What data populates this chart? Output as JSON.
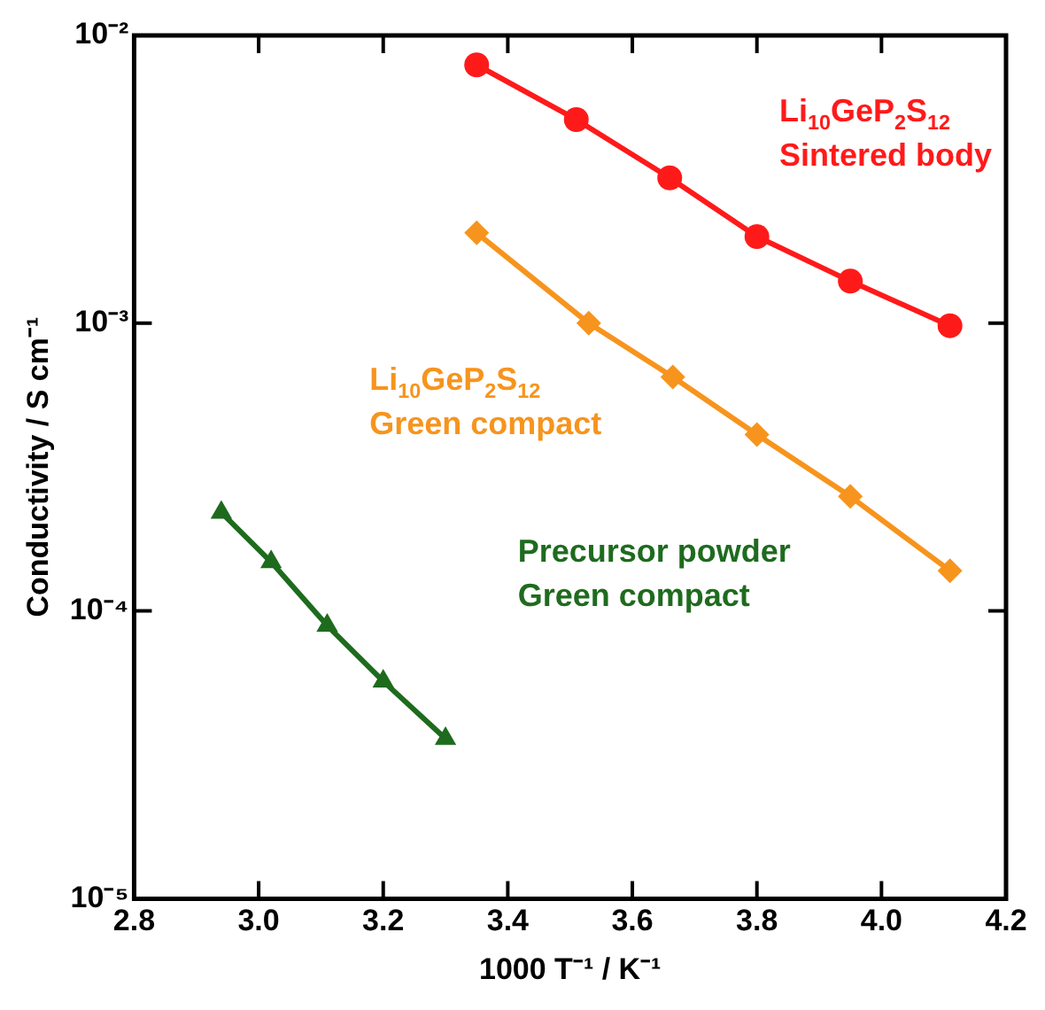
{
  "chart_data": {
    "type": "line",
    "xlabel": "1000 T⁻¹ / K⁻¹",
    "ylabel": "Conductivity / S cm⁻¹",
    "log": "y",
    "xlim": [
      2.8,
      4.2
    ],
    "xticks": [
      {
        "value": 2.8,
        "label": "2.8"
      },
      {
        "value": 3.0,
        "label": "3.0"
      },
      {
        "value": 3.2,
        "label": "3.2"
      },
      {
        "value": 3.4,
        "label": "3.4"
      },
      {
        "value": 3.6,
        "label": "3.6"
      },
      {
        "value": 3.8,
        "label": "3.8"
      },
      {
        "value": 4.0,
        "label": "4.0"
      },
      {
        "value": 4.2,
        "label": "4.2"
      }
    ],
    "ylim": [
      1e-05,
      0.01
    ],
    "yticks": [
      {
        "value": 1e-05,
        "label": "10⁻⁵"
      },
      {
        "value": 0.0001,
        "label": "10⁻⁴"
      },
      {
        "value": 0.001,
        "label": "10⁻³"
      },
      {
        "value": 0.01,
        "label": "10⁻²"
      }
    ],
    "grid": false,
    "legend": false,
    "line_style": "solid",
    "series": [
      {
        "name": "Li$_{10}$GeP$_{2}$S$_{12}$\nSintered body",
        "color": "#ff1a1a",
        "marker": "circle",
        "x": [
          3.35,
          3.51,
          3.66,
          3.8,
          3.95,
          4.11
        ],
        "values": [
          0.0079,
          0.0051,
          0.0032,
          0.002,
          0.0014,
          0.00098
        ]
      },
      {
        "name": "Li$_{10}$GeP$_{2}$S$_{12}$\nGreen compact",
        "color": "#f7941d",
        "marker": "diamond",
        "x": [
          3.35,
          3.53,
          3.665,
          3.8,
          3.95,
          4.11
        ],
        "values": [
          0.00206,
          0.001,
          0.00065,
          0.00041,
          0.00025,
          0.000138
        ]
      },
      {
        "name": "Precursor powder\nGreen compact",
        "color": "#1e6b1e",
        "marker": "triangle",
        "x": [
          2.94,
          3.02,
          3.11,
          3.2,
          3.3
        ],
        "values": [
          0.00022,
          0.000148,
          8.9e-05,
          5.7e-05,
          3.6e-05
        ]
      }
    ]
  }
}
